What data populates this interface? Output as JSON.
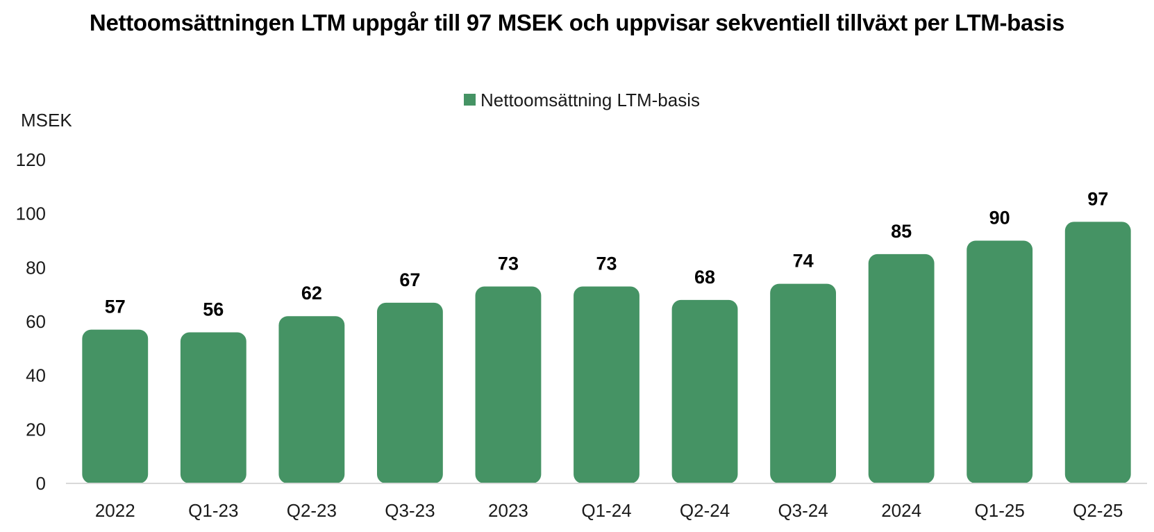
{
  "chart_data": {
    "type": "bar",
    "title": "Nettoomsättningen LTM uppgår till 97 MSEK och uppvisar sekventiell tillväxt per LTM-basis",
    "ylabel": "MSEK",
    "xlabel": "",
    "categories": [
      "2022",
      "Q1-23",
      "Q2-23",
      "Q3-23",
      "2023",
      "Q1-24",
      "Q2-24",
      "Q3-24",
      "2024",
      "Q1-25",
      "Q2-25"
    ],
    "series": [
      {
        "name": "Nettoomsättning LTM-basis",
        "values": [
          57,
          56,
          62,
          67,
          73,
          73,
          68,
          74,
          85,
          90,
          97
        ],
        "color": "#459364"
      }
    ],
    "data_labels": [
      "57",
      "56",
      "62",
      "67",
      "73",
      "73",
      "68",
      "74",
      "85",
      "90",
      "97"
    ],
    "ylim": [
      0,
      120
    ],
    "yticks": [
      "0",
      "20",
      "40",
      "60",
      "80",
      "100",
      "120"
    ],
    "grid": false,
    "legend_position": "top-center"
  }
}
